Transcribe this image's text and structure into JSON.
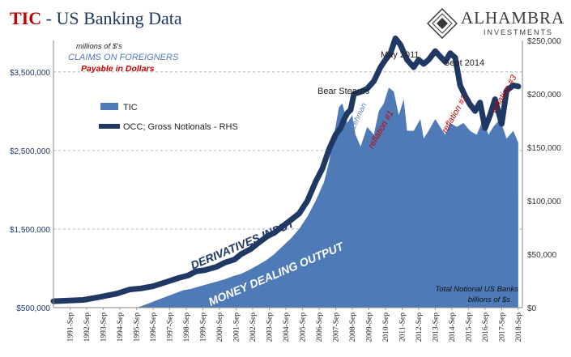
{
  "header": {
    "title_tic": "TIC",
    "title_rest": " - US Banking Data",
    "logo_name": "ALHAMBRA",
    "logo_sub": "INVESTMENTS"
  },
  "chart_data": {
    "type": "area",
    "colors": {
      "area": "#4e7ab8",
      "line": "#1f3864",
      "left_ticks": "#1f3864",
      "red": "#c00000",
      "grid": "#aaaaaa"
    },
    "left_axis": {
      "range": [
        500000,
        3900000
      ],
      "ticks": [
        500000,
        1500000,
        2500000,
        3500000
      ],
      "tick_labels": [
        "$500,000",
        "$1,500,000",
        "$2,500,000",
        "$3,500,000"
      ]
    },
    "right_axis": {
      "range": [
        0,
        250000
      ],
      "ticks": [
        0,
        50000,
        100000,
        150000,
        200000,
        250000
      ],
      "tick_labels": [
        "$0",
        "$50,000",
        "$100,000",
        "$150,000",
        "$200,000",
        "$250,000"
      ]
    },
    "grid": "horizontal dashed at left-axis ticks",
    "x_labels": [
      "1991-Sep",
      "1992-Sep",
      "1993-Sep",
      "1994-Sep",
      "1995-Sep",
      "1996-Sep",
      "1997-Sep",
      "1998-Sep",
      "1999-Sep",
      "2000-Sep",
      "2001-Sep",
      "2002-Sep",
      "2003-Sep",
      "2004-Sep",
      "2005-Sep",
      "2006-Sep",
      "2007-Sep",
      "2008-Sep",
      "2009-Sep",
      "2010-Sep",
      "2011-Sep",
      "2012-Sep",
      "2013-Sep",
      "2014-Sep",
      "2015-Sep",
      "2016-Sep",
      "2017-Sep",
      "2018-Sep"
    ],
    "series": [
      {
        "name": "TIC",
        "axis": "left",
        "style": "area",
        "points": [
          [
            1995.7,
            500000
          ],
          [
            1996.0,
            520000
          ],
          [
            1996.5,
            560000
          ],
          [
            1997.0,
            600000
          ],
          [
            1997.5,
            640000
          ],
          [
            1998.0,
            680000
          ],
          [
            1998.5,
            720000
          ],
          [
            1999.0,
            740000
          ],
          [
            1999.5,
            770000
          ],
          [
            2000.0,
            800000
          ],
          [
            2000.5,
            830000
          ],
          [
            2001.0,
            860000
          ],
          [
            2001.5,
            900000
          ],
          [
            2002.0,
            930000
          ],
          [
            2002.5,
            980000
          ],
          [
            2003.0,
            1040000
          ],
          [
            2003.5,
            1100000
          ],
          [
            2004.0,
            1180000
          ],
          [
            2004.5,
            1280000
          ],
          [
            2005.0,
            1380000
          ],
          [
            2005.5,
            1500000
          ],
          [
            2006.0,
            1660000
          ],
          [
            2006.5,
            1860000
          ],
          [
            2007.0,
            2100000
          ],
          [
            2007.3,
            2350000
          ],
          [
            2007.6,
            2700000
          ],
          [
            2007.9,
            3050000
          ],
          [
            2008.1,
            3100000
          ],
          [
            2008.4,
            2850000
          ],
          [
            2008.7,
            2950000
          ],
          [
            2008.9,
            2700000
          ],
          [
            2009.2,
            2550000
          ],
          [
            2009.6,
            2800000
          ],
          [
            2010.0,
            2700000
          ],
          [
            2010.3,
            3000000
          ],
          [
            2010.6,
            3100000
          ],
          [
            2010.9,
            3300000
          ],
          [
            2011.2,
            3250000
          ],
          [
            2011.5,
            2950000
          ],
          [
            2011.8,
            3150000
          ],
          [
            2012.0,
            2750000
          ],
          [
            2012.4,
            2750000
          ],
          [
            2012.8,
            2900000
          ],
          [
            2013.0,
            2650000
          ],
          [
            2013.3,
            2750000
          ],
          [
            2013.7,
            2900000
          ],
          [
            2014.0,
            2800000
          ],
          [
            2014.3,
            2700000
          ],
          [
            2014.6,
            2850000
          ],
          [
            2015.0,
            2800000
          ],
          [
            2015.4,
            2850000
          ],
          [
            2015.8,
            2750000
          ],
          [
            2016.2,
            2700000
          ],
          [
            2016.6,
            2900000
          ],
          [
            2016.9,
            2700000
          ],
          [
            2017.2,
            2800000
          ],
          [
            2017.6,
            2900000
          ],
          [
            2018.0,
            2650000
          ],
          [
            2018.4,
            2750000
          ],
          [
            2018.7,
            2600000
          ]
        ]
      },
      {
        "name": "OCC; Gross Notionals - RHS",
        "axis": "right",
        "style": "line",
        "points": [
          [
            1990.7,
            6000
          ],
          [
            1991.5,
            6500
          ],
          [
            1992.5,
            7200
          ],
          [
            1993.5,
            10000
          ],
          [
            1994.5,
            13000
          ],
          [
            1995.3,
            17000
          ],
          [
            1996.0,
            18000
          ],
          [
            1996.7,
            20000
          ],
          [
            1997.5,
            24000
          ],
          [
            1998.3,
            28000
          ],
          [
            1998.8,
            30000
          ],
          [
            1999.3,
            34000
          ],
          [
            1999.8,
            35000
          ],
          [
            2000.5,
            38000
          ],
          [
            2001.0,
            42000
          ],
          [
            2001.6,
            45000
          ],
          [
            2002.0,
            50000
          ],
          [
            2002.6,
            55000
          ],
          [
            2003.0,
            60000
          ],
          [
            2003.6,
            67000
          ],
          [
            2004.0,
            70000
          ],
          [
            2004.5,
            76000
          ],
          [
            2005.0,
            82000
          ],
          [
            2005.5,
            88000
          ],
          [
            2006.0,
            100000
          ],
          [
            2006.5,
            118000
          ],
          [
            2006.9,
            130000
          ],
          [
            2007.3,
            148000
          ],
          [
            2007.7,
            162000
          ],
          [
            2008.0,
            168000
          ],
          [
            2008.2,
            176000
          ],
          [
            2008.4,
            182000
          ],
          [
            2008.6,
            185000
          ],
          [
            2008.8,
            200000
          ],
          [
            2009.2,
            202000
          ],
          [
            2009.6,
            205000
          ],
          [
            2010.0,
            212000
          ],
          [
            2010.4,
            225000
          ],
          [
            2010.7,
            232000
          ],
          [
            2011.0,
            238000
          ],
          [
            2011.3,
            252000
          ],
          [
            2011.6,
            246000
          ],
          [
            2012.0,
            232000
          ],
          [
            2012.4,
            225000
          ],
          [
            2012.7,
            232000
          ],
          [
            2013.0,
            228000
          ],
          [
            2013.3,
            232000
          ],
          [
            2013.7,
            240000
          ],
          [
            2014.0,
            235000
          ],
          [
            2014.3,
            230000
          ],
          [
            2014.6,
            238000
          ],
          [
            2014.9,
            234000
          ],
          [
            2015.2,
            208000
          ],
          [
            2015.5,
            198000
          ],
          [
            2015.8,
            190000
          ],
          [
            2016.1,
            184000
          ],
          [
            2016.4,
            192000
          ],
          [
            2016.7,
            168000
          ],
          [
            2017.0,
            180000
          ],
          [
            2017.3,
            195000
          ],
          [
            2017.7,
            172000
          ],
          [
            2018.0,
            203000
          ],
          [
            2018.4,
            208000
          ],
          [
            2018.7,
            207000
          ]
        ]
      }
    ],
    "legend": {
      "placement": "upper-left",
      "entries": [
        "TIC",
        "OCC; Gross Notionals - RHS"
      ]
    },
    "annotations": {
      "subtitle_1": "millions of $'s",
      "subtitle_2": "CLAIMS ON FOREIGNERS",
      "subtitle_3": "Payable in Dollars",
      "bear_stearns": "Bear Stearns",
      "may_2011": "May 2011",
      "sept_2014": "Sept 2014",
      "lehman": "Lehman",
      "reflation_1": "reflation #1",
      "reflation_2": "reflation #2",
      "reflation_3": "reflation #3",
      "derivatives_input": "DERIVATIVES INPUT",
      "money_dealing_output": "MONEY DEALING OUTPUT",
      "total_notional_1": "Total Notional US Banks",
      "total_notional_2": "billions of $s"
    }
  }
}
